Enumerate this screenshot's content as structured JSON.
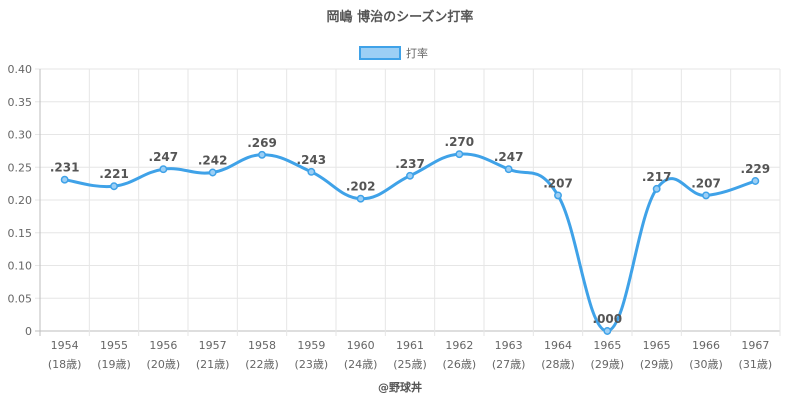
{
  "chart_data": {
    "type": "line",
    "title": "岡嶋 博治のシーズン打率",
    "legend": {
      "label": "打率",
      "placement": "top-center"
    },
    "categories": [
      "1954",
      "1955",
      "1956",
      "1957",
      "1958",
      "1959",
      "1960",
      "1961",
      "1962",
      "1963",
      "1964",
      "1965",
      "1965",
      "1966",
      "1967"
    ],
    "category_sublabels": [
      "(18歳)",
      "(19歳)",
      "(20歳)",
      "(21歳)",
      "(22歳)",
      "(23歳)",
      "(24歳)",
      "(25歳)",
      "(26歳)",
      "(27歳)",
      "(28歳)",
      "(29歳)",
      "(29歳)",
      "(30歳)",
      "(31歳)"
    ],
    "series": [
      {
        "name": "打率",
        "values": [
          0.231,
          0.221,
          0.247,
          0.242,
          0.269,
          0.243,
          0.202,
          0.237,
          0.27,
          0.247,
          0.207,
          0.0,
          0.217,
          0.207,
          0.229
        ],
        "labels": [
          ".231",
          ".221",
          ".247",
          ".242",
          ".269",
          ".243",
          ".202",
          ".237",
          ".270",
          ".247",
          ".207",
          ".000",
          ".217",
          ".207",
          ".229"
        ]
      }
    ],
    "ylim": [
      0,
      0.4
    ],
    "yticks": [
      "0",
      "0.05",
      "0.10",
      "0.15",
      "0.20",
      "0.25",
      "0.30",
      "0.35",
      "0.40"
    ],
    "grid": true,
    "colors": {
      "line": "#3fa2e8",
      "fill": "#9ccff5",
      "grid": "#e6e6e6",
      "text": "#666666"
    }
  },
  "credit": "@野球丼"
}
